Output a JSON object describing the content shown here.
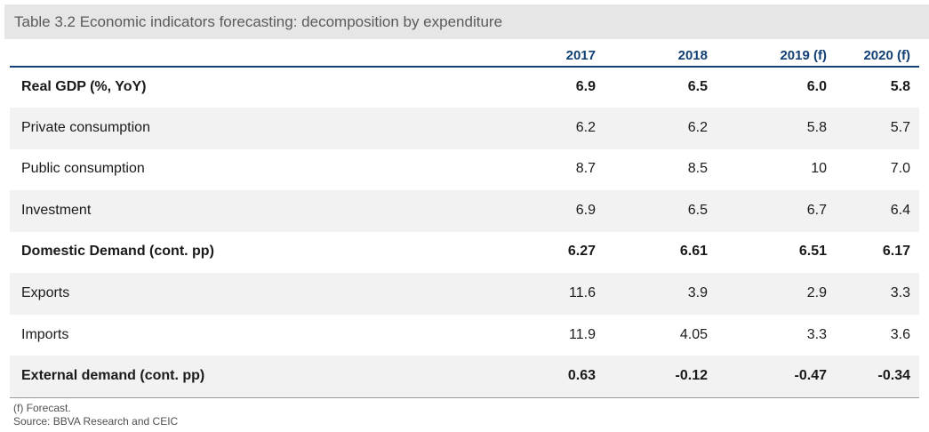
{
  "title": "Table 3.2 Economic indicators forecasting: decomposition by expenditure",
  "columns": [
    "2017",
    "2018",
    "2019 (f)",
    "2020 (f)"
  ],
  "rows": [
    {
      "label": "Real GDP (%, YoY)",
      "values": [
        "6.9",
        "6.5",
        "6.0",
        "5.8"
      ],
      "bold": true
    },
    {
      "label": "Private consumption",
      "values": [
        "6.2",
        "6.2",
        "5.8",
        "5.7"
      ],
      "bold": false
    },
    {
      "label": "Public consumption",
      "values": [
        "8.7",
        "8.5",
        "10",
        "7.0"
      ],
      "bold": false
    },
    {
      "label": "Investment",
      "values": [
        "6.9",
        "6.5",
        "6.7",
        "6.4"
      ],
      "bold": false
    },
    {
      "label": "Domestic Demand (cont. pp)",
      "values": [
        "6.27",
        "6.61",
        "6.51",
        "6.17"
      ],
      "bold": true
    },
    {
      "label": "Exports",
      "values": [
        "11.6",
        "3.9",
        "2.9",
        "3.3"
      ],
      "bold": false
    },
    {
      "label": "Imports",
      "values": [
        "11.9",
        "4.05",
        "3.3",
        "3.6"
      ],
      "bold": false
    },
    {
      "label": "External demand (cont. pp)",
      "values": [
        "0.63",
        "-0.12",
        "-0.47",
        "-0.34"
      ],
      "bold": true
    }
  ],
  "notes": {
    "forecast": "(f) Forecast.",
    "source": "Source: BBVA Research and CEIC"
  }
}
